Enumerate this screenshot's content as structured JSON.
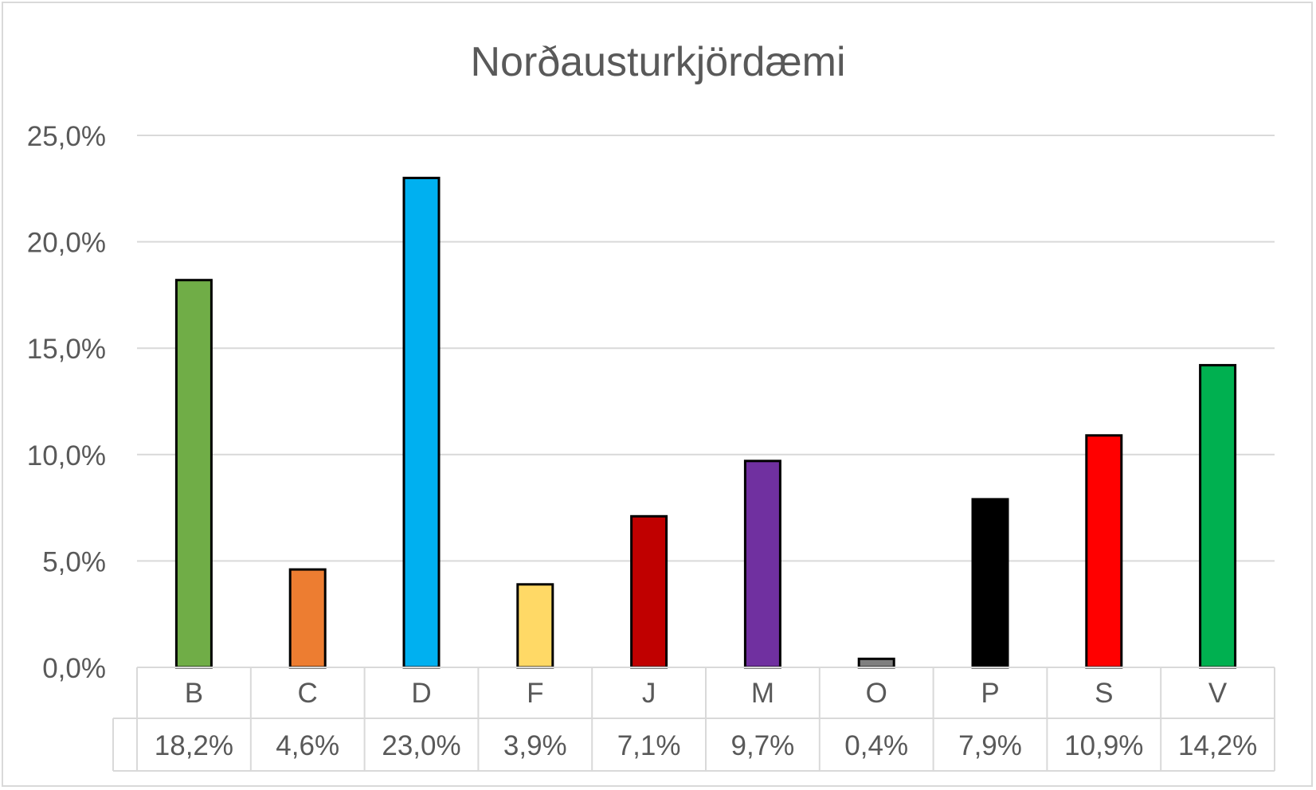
{
  "chart_data": {
    "type": "bar",
    "title": "Norðausturkjördæmi",
    "categories": [
      "B",
      "C",
      "D",
      "F",
      "J",
      "M",
      "O",
      "P",
      "S",
      "V"
    ],
    "values": [
      18.2,
      4.6,
      23.0,
      3.9,
      7.1,
      9.7,
      0.4,
      7.9,
      10.9,
      14.2
    ],
    "value_labels": [
      "18,2%",
      "4,6%",
      "23,0%",
      "3,9%",
      "7,1%",
      "9,7%",
      "0,4%",
      "7,9%",
      "10,9%",
      "14,2%"
    ],
    "bar_colors": [
      "#70ad47",
      "#ed7d31",
      "#00b0f0",
      "#ffd966",
      "#c00000",
      "#7030a0",
      "#7f7f7f",
      "#000000",
      "#ff0000",
      "#00b050"
    ],
    "ylim": [
      0,
      25
    ],
    "yticks": [
      0,
      5,
      10,
      15,
      20,
      25
    ],
    "ytick_labels": [
      "0,0%",
      "5,0%",
      "10,0%",
      "15,0%",
      "20,0%",
      "25,0%"
    ],
    "grid": true,
    "data_table": true
  }
}
